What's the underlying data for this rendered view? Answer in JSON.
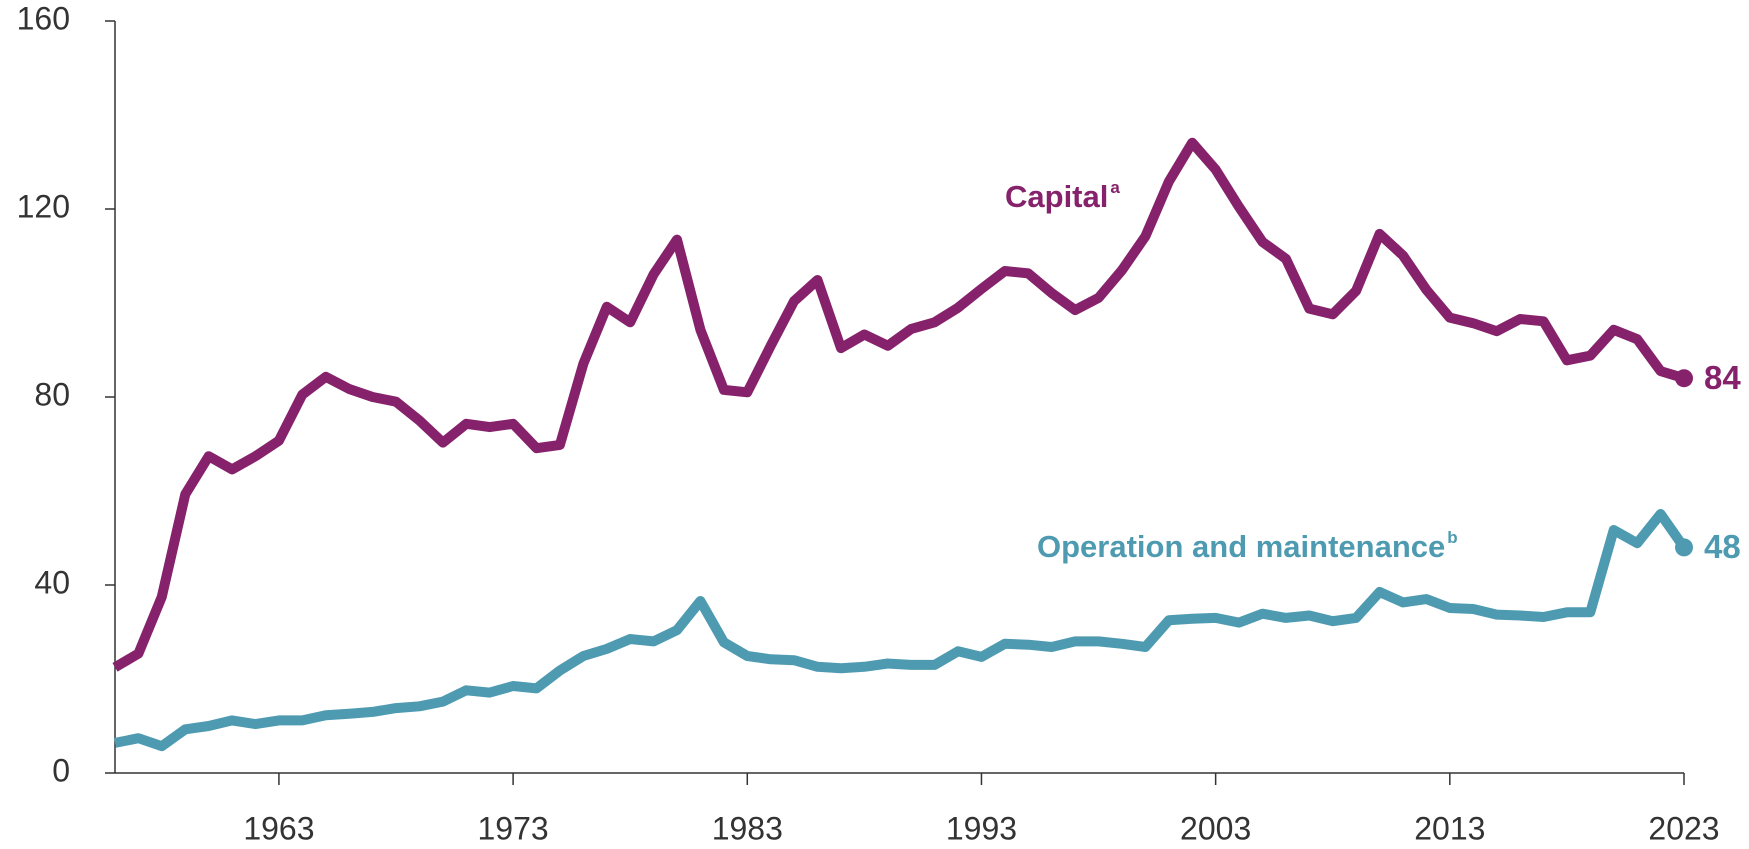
{
  "chart_data": {
    "type": "line",
    "x": [
      1956,
      1957,
      1958,
      1959,
      1960,
      1961,
      1962,
      1963,
      1964,
      1965,
      1966,
      1967,
      1968,
      1969,
      1970,
      1971,
      1972,
      1973,
      1974,
      1975,
      1976,
      1977,
      1978,
      1979,
      1980,
      1981,
      1982,
      1983,
      1984,
      1985,
      1986,
      1987,
      1988,
      1989,
      1990,
      1991,
      1992,
      1993,
      1994,
      1995,
      1996,
      1997,
      1998,
      1999,
      2000,
      2001,
      2002,
      2003,
      2004,
      2005,
      2006,
      2007,
      2008,
      2009,
      2010,
      2011,
      2012,
      2013,
      2014,
      2015,
      2016,
      2017,
      2018,
      2019,
      2020,
      2021,
      2022,
      2023
    ],
    "series": [
      {
        "name": "Capital",
        "note_marker": "a",
        "color": "#86226b",
        "values": [
          22.5,
          25.4,
          37.5,
          59.3,
          67.4,
          64.6,
          67.4,
          70.7,
          80.5,
          84.3,
          81.7,
          80,
          79,
          75,
          70.3,
          74.3,
          73.6,
          74.3,
          69.1,
          69.8,
          87.1,
          99.2,
          95.9,
          106.1,
          113.5,
          94.3,
          81.5,
          81,
          90.9,
          100.4,
          104.9,
          90.4,
          93.3,
          90.9,
          94.5,
          95.9,
          99,
          103,
          106.8,
          106.3,
          102.1,
          98.5,
          101.1,
          107,
          114.2,
          125.8,
          134.1,
          128.4,
          120.4,
          113,
          109.4,
          98.8,
          97.6,
          102.6,
          114.7,
          110.1,
          102.8,
          96.9,
          95.7,
          94,
          96.6,
          96.1,
          87.8,
          88.8,
          94.3,
          92.3,
          85.5,
          84
        ]
      },
      {
        "name": "Operation and maintenance",
        "note_marker": "b",
        "color": "#4e9bb1",
        "values": [
          6.4,
          7.4,
          5.7,
          9.3,
          10,
          11.2,
          10.4,
          11.2,
          11.2,
          12.3,
          12.6,
          13,
          13.8,
          14.2,
          15.2,
          17.6,
          17.1,
          18.5,
          18,
          21.8,
          24.9,
          26.4,
          28.5,
          28,
          30.4,
          36.6,
          27.8,
          24.9,
          24.2,
          24,
          22.6,
          22.3,
          22.6,
          23.3,
          23,
          23,
          25.9,
          24.7,
          27.5,
          27.3,
          26.8,
          28,
          28,
          27.5,
          26.8,
          32.5,
          32.8,
          33,
          32,
          33.9,
          33,
          33.5,
          32.3,
          33,
          38.5,
          36.3,
          37,
          35.1,
          34.9,
          33.7,
          33.5,
          33.2,
          34.2,
          34.2,
          51.7,
          48.9,
          55.1,
          48
        ]
      }
    ],
    "xlim": [
      1956,
      2023
    ],
    "xticks": [
      1963,
      1973,
      1983,
      1993,
      2003,
      2013,
      2023
    ],
    "ylim": [
      0,
      160
    ],
    "yticks": [
      0,
      40,
      80,
      120,
      160
    ]
  }
}
